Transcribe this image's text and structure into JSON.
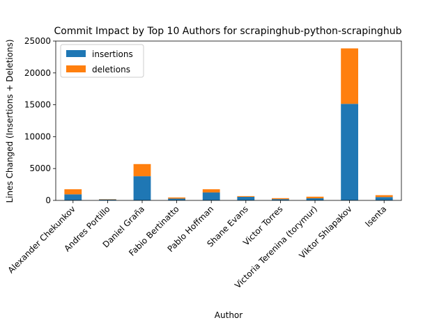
{
  "chart_data": {
    "type": "bar",
    "stacked": true,
    "title": "Commit Impact by Top 10 Authors for scrapinghub-python-scrapinghub",
    "xlabel": "Author",
    "ylabel": "Lines Changed (Insertions + Deletions)",
    "categories": [
      "Alexander Chekunkov",
      "Andres Portillo",
      "Daniel Graña",
      "Fabio Bertinatto",
      "Pablo Hoffman",
      "Shane Evans",
      "Victor Torres",
      "Victoria Terenina (torymur)",
      "Viktor Shlapakov",
      "lsenta"
    ],
    "series": [
      {
        "name": "insertions",
        "color": "#1f77b4",
        "values": [
          950,
          150,
          3800,
          280,
          1250,
          550,
          200,
          330,
          15150,
          520
        ]
      },
      {
        "name": "deletions",
        "color": "#ff7f0e",
        "values": [
          800,
          50,
          1900,
          180,
          500,
          120,
          150,
          250,
          8700,
          300
        ]
      }
    ],
    "ylim": [
      0,
      25000
    ],
    "yticks": [
      0,
      5000,
      10000,
      15000,
      20000,
      25000
    ],
    "grid": false,
    "legend_position": "top-left"
  }
}
